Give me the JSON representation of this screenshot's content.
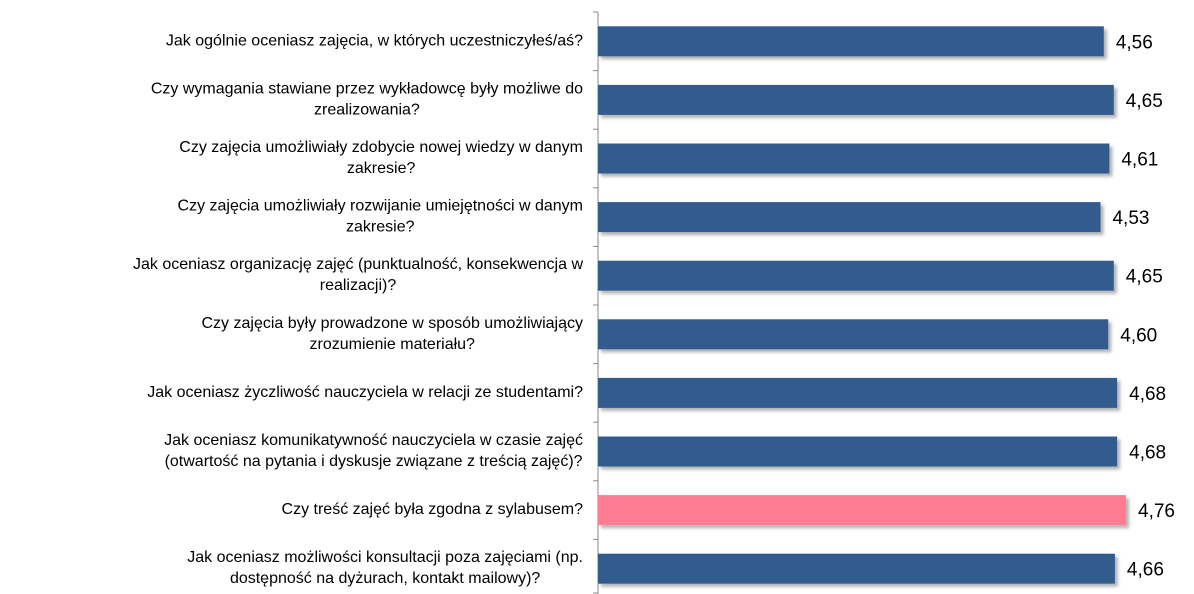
{
  "chart_data": {
    "type": "barh",
    "categories": [
      "Jak ogólnie oceniasz zajęcia, w których uczestniczyłeś/aś?",
      "Czy wymagania stawiane przez wykładowcę były możliwe do\nzrealizowania?",
      "Czy zajęcia umożliwiały zdobycie nowej wiedzy w danym\nzakresie?",
      "Czy zajęcia umożliwiały rozwijanie umiejętności w danym\nzakresie?",
      "Jak oceniasz organizację zajęć (punktualność, konsekwencja w\nrealizacji)?",
      "Czy zajęcia były prowadzone w sposób umożliwiający\nzrozumienie materiału?",
      "Jak oceniasz życzliwość nauczyciela w relacji ze studentami?",
      "Jak oceniasz komunikatywność nauczyciela w czasie zajęć\n(otwartość na pytania i dyskusje związane z treścią zajęć)?",
      "Czy treść zajęć była zgodna z sylabusem?",
      "Jak oceniasz możliwości konsultacji poza zajęciami (np.\ndostępność na dyżurach, kontakt mailowy)?"
    ],
    "values": [
      4.56,
      4.65,
      4.61,
      4.53,
      4.65,
      4.6,
      4.68,
      4.68,
      4.76,
      4.66
    ],
    "value_labels": [
      "4,56",
      "4,65",
      "4,61",
      "4,53",
      "4,65",
      "4,60",
      "4,68",
      "4,68",
      "4,76",
      "4,66"
    ],
    "colors": [
      "#335b8e",
      "#335b8e",
      "#335b8e",
      "#335b8e",
      "#335b8e",
      "#335b8e",
      "#335b8e",
      "#335b8e",
      "#ff7c93",
      "#335b8e"
    ],
    "xlim": [
      0,
      5.4
    ]
  }
}
